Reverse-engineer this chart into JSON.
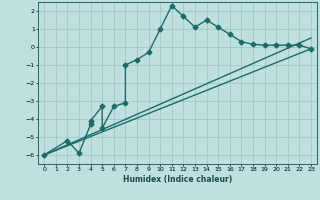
{
  "xlabel": "Humidex (Indice chaleur)",
  "ylabel": "",
  "bg_color": "#c0e0e0",
  "grid_color": "#a0c8c8",
  "line_color": "#1a6b6b",
  "xlim": [
    -0.5,
    23.5
  ],
  "ylim": [
    -6.5,
    2.5
  ],
  "xticks": [
    0,
    1,
    2,
    3,
    4,
    5,
    6,
    7,
    8,
    9,
    10,
    11,
    12,
    13,
    14,
    15,
    16,
    17,
    18,
    19,
    20,
    21,
    22,
    23
  ],
  "yticks": [
    -6,
    -5,
    -4,
    -3,
    -2,
    -1,
    0,
    1,
    2
  ],
  "line1_x": [
    0,
    2,
    3,
    4,
    4,
    5,
    5,
    6,
    7,
    7,
    8,
    9,
    10,
    11,
    12,
    13,
    14,
    15,
    16,
    17,
    18,
    19,
    20,
    21,
    22,
    23
  ],
  "line1_y": [
    -6,
    -5.2,
    -5.9,
    -4.3,
    -4.1,
    -3.3,
    -4.5,
    -3.3,
    -3.1,
    -1.0,
    -0.7,
    -0.3,
    1.0,
    2.3,
    1.7,
    1.1,
    1.5,
    1.1,
    0.7,
    0.3,
    0.15,
    0.1,
    0.1,
    0.1,
    0.1,
    -0.1
  ],
  "line2_x": [
    0,
    23
  ],
  "line2_y": [
    -6,
    -0.1
  ],
  "line3_x": [
    0,
    23
  ],
  "line3_y": [
    -6,
    0.5
  ],
  "marker": "D",
  "markersize": 2.5,
  "linewidth": 1.0
}
